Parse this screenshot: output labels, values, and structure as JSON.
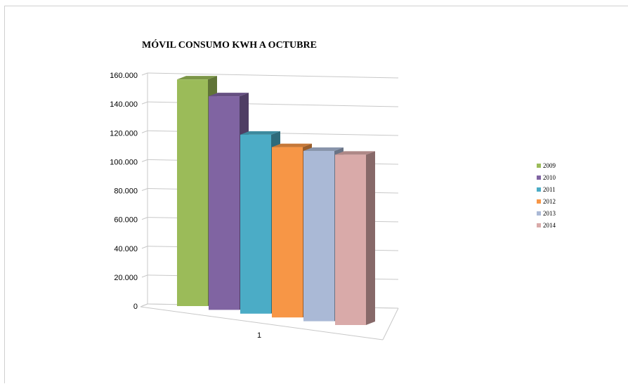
{
  "chart_data": {
    "type": "bar",
    "title": "MÓVIL CONSUMO KWH A OCTUBRE",
    "categories": [
      "1"
    ],
    "y_ticks": [
      "0",
      "20.000",
      "40.000",
      "60.000",
      "80.000",
      "100.000",
      "120.000",
      "140.000",
      "160.000"
    ],
    "ylim": [
      0,
      160000
    ],
    "grid": true,
    "legend_position": "right",
    "series": [
      {
        "name": "2009",
        "values": [
          157000
        ],
        "color": "#9bbb59"
      },
      {
        "name": "2010",
        "values": [
          148000
        ],
        "color": "#8064a2"
      },
      {
        "name": "2011",
        "values": [
          124000
        ],
        "color": "#4bacc6"
      },
      {
        "name": "2012",
        "values": [
          118000
        ],
        "color": "#f79646"
      },
      {
        "name": "2013",
        "values": [
          118000
        ],
        "color": "#aab9d6"
      },
      {
        "name": "2014",
        "values": [
          118000
        ],
        "color": "#d9aaa9"
      }
    ]
  }
}
